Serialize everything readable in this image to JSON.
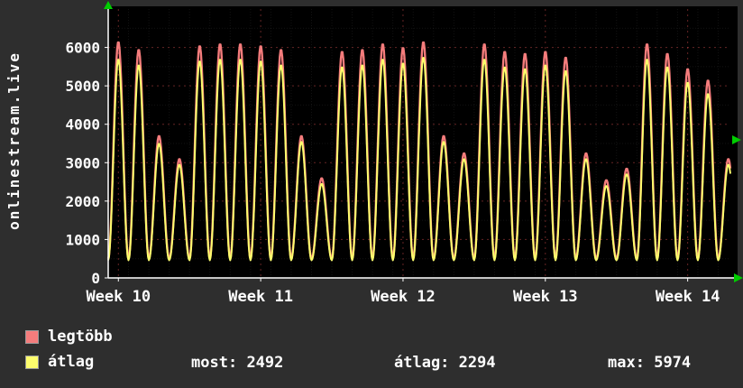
{
  "page": {
    "background": "#2e2e2e"
  },
  "chart": {
    "plot_bg": "#000000",
    "axis_color": "#ffffff",
    "arrow_color": "#00cc00",
    "major_grid_color": "rgba(255,90,90,0.40)",
    "minor_grid_color": "rgba(255,255,255,0.07)",
    "label_color": "#ffffff"
  },
  "chart_data": {
    "type": "line",
    "title": "onlinestream.live",
    "ylabel_vertical": "onlinestream.live",
    "ylim": [
      0,
      7000
    ],
    "y_ticks": [
      0,
      1000,
      2000,
      3000,
      4000,
      5000,
      6000
    ],
    "x_tick_labels": [
      "Week 10",
      "Week 11",
      "Week 12",
      "Week 13",
      "Week 14"
    ],
    "x_tick_days": [
      0.5,
      7.5,
      14.5,
      21.5,
      28.5
    ],
    "total_days": 30.6,
    "grid": true,
    "legend_position": "bottom-left",
    "series": [
      {
        "name": "legtöbb",
        "color": "#f47c7c",
        "baseline": 500,
        "daily_peaks": [
          6150,
          5950,
          3700,
          3100,
          6050,
          6100,
          6100,
          6050,
          5950,
          3700,
          2600,
          5900,
          5950,
          6100,
          6000,
          6150,
          3700,
          3250,
          6100,
          5900,
          5850,
          5900,
          5750,
          3250,
          2550,
          2850,
          6100,
          5850,
          5450,
          5150,
          3100
        ]
      },
      {
        "name": "átlag",
        "color": "#fdfd6d",
        "baseline": 460,
        "daily_peaks": [
          5700,
          5550,
          3500,
          2950,
          5650,
          5700,
          5700,
          5650,
          5550,
          3550,
          2450,
          5500,
          5550,
          5700,
          5600,
          5750,
          3550,
          3100,
          5700,
          5500,
          5450,
          5550,
          5400,
          3100,
          2400,
          2700,
          5700,
          5500,
          5100,
          4800,
          2950
        ]
      }
    ]
  },
  "legend": {
    "items": [
      {
        "label": "legtöbb",
        "color": "#f47c7c"
      },
      {
        "label": "átlag",
        "color": "#fdfd6d"
      }
    ],
    "stats": [
      {
        "label": "most:",
        "value": "2492"
      },
      {
        "label": "átlag:",
        "value": "2294"
      },
      {
        "label": "max:",
        "value": "5974"
      }
    ]
  }
}
